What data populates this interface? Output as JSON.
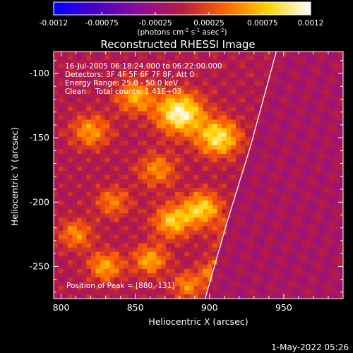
{
  "chart_data": {
    "type": "heatmap",
    "title": "Reconstructed RHESSI Image",
    "xlabel": "Heliocentric X (arcsec)",
    "ylabel": "Heliocentric Y (arcsec)",
    "xlim": [
      795,
      990
    ],
    "ylim": [
      -275,
      -83
    ],
    "x_ticks": [
      800,
      850,
      900,
      950
    ],
    "y_ticks": [
      -100,
      -150,
      -200,
      -250
    ],
    "colorbar": {
      "range": [
        -0.0012,
        0.0012
      ],
      "ticks": [
        "-0.0012",
        "-0.00075",
        "-0.00025",
        "0.00025",
        "0.00075",
        "0.0012"
      ],
      "label_prefix": "(photons cm",
      "label_sup1": "-2",
      "label_mid1": " s",
      "label_sup2": "-1",
      "label_mid2": " asec",
      "label_sup3": "-2",
      "label_suffix": ")",
      "colors": [
        "#0000ff",
        "#4b00c8",
        "#8c0d9b",
        "#b81c3e",
        "#ff6400",
        "#ffd200",
        "#ffffff"
      ]
    },
    "annotations": [
      "16-Jul-2005 06:18:24.000 to 06:22:00.000",
      "Detectors: 3F 4F 5F 6F 7F 8F, Att 0",
      "Energy Range: 25.0 - 50.0 keV",
      "Clean    Total counts: 1.41E+03"
    ],
    "peak_label": "Position of Peak = [880,-131]",
    "peak_position": [
      880,
      -131
    ],
    "limb_points": [
      [
        897,
        -275
      ],
      [
        912,
        -215
      ],
      [
        928,
        -155
      ],
      [
        945,
        -83
      ]
    ]
  },
  "footer": {
    "date": "1-May-2022 05:26"
  }
}
